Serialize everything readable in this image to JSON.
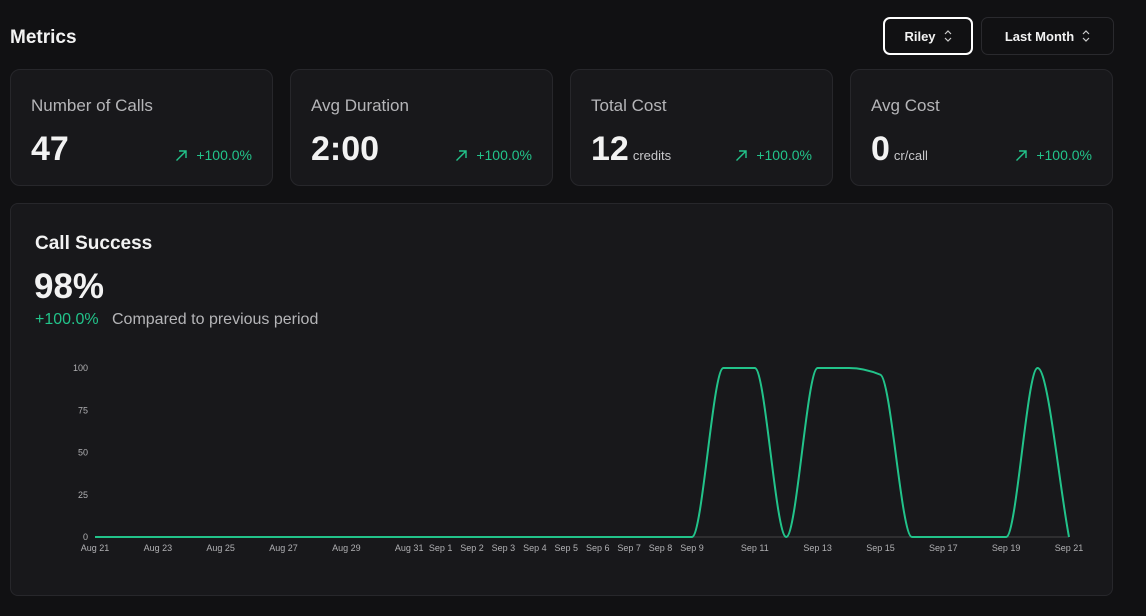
{
  "header": {
    "title": "Metrics",
    "user_select": "Riley",
    "period_select": "Last Month"
  },
  "cards": [
    {
      "label": "Number of Calls",
      "value": "47",
      "change": "+100.0%"
    },
    {
      "label": "Avg Duration",
      "value": "2:00",
      "change": "+100.0%"
    },
    {
      "label": "Total Cost",
      "value": "12",
      "unit": "credits",
      "change": "+100.0%"
    },
    {
      "label": "Avg Cost",
      "value": "0",
      "unit": "cr/call",
      "change": "+100.0%"
    }
  ],
  "panel": {
    "title": "Call Success",
    "value": "98%",
    "change": "+100.0%",
    "change_note": "Compared to previous period"
  },
  "chart_data": {
    "type": "line",
    "categories": [
      "Aug 21",
      null,
      "Aug 23",
      null,
      "Aug 25",
      null,
      "Aug 27",
      null,
      "Aug 29",
      null,
      "Aug 31",
      "Sep 1",
      "Sep 2",
      "Sep 3",
      "Sep 4",
      "Sep 5",
      "Sep 6",
      "Sep 7",
      "Sep 8",
      "Sep 9",
      null,
      "Sep 11",
      null,
      "Sep 13",
      null,
      "Sep 15",
      null,
      "Sep 17",
      null,
      "Sep 19",
      null,
      "Sep 21"
    ],
    "values": [
      0,
      0,
      0,
      0,
      0,
      0,
      0,
      0,
      0,
      0,
      0,
      0,
      0,
      0,
      0,
      0,
      0,
      0,
      0,
      0,
      100,
      100,
      0,
      100,
      100,
      96,
      0,
      0,
      0,
      0,
      100,
      0
    ],
    "color": "#22c38a",
    "ylim": [
      0,
      100
    ],
    "yticks": [
      0,
      25,
      50,
      75,
      100
    ],
    "grid": false
  }
}
